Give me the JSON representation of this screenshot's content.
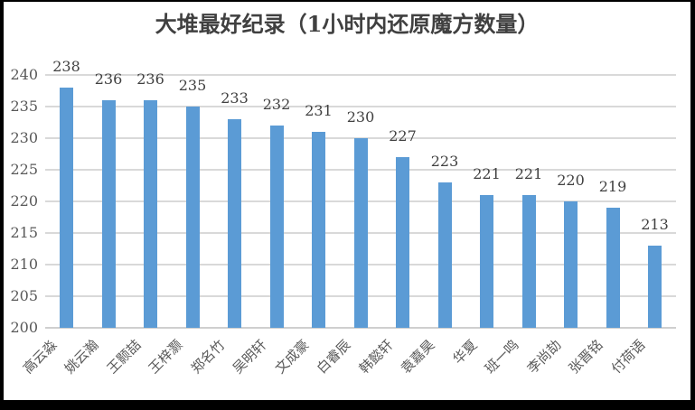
{
  "chart_data": {
    "type": "bar",
    "title": "大堆最好纪录（1小时内还原魔方数量）",
    "categories": [
      "高云淼",
      "姚云瀚",
      "王颢喆",
      "王梓灏",
      "郑名竹",
      "吴明轩",
      "文成豪",
      "白睿辰",
      "韩懿轩",
      "袁嘉昊",
      "华夏",
      "班一鸣",
      "李尚劼",
      "张晋铭",
      "付荷语"
    ],
    "values": [
      238,
      236,
      236,
      235,
      233,
      232,
      231,
      230,
      227,
      223,
      221,
      221,
      220,
      219,
      213
    ],
    "data_labels": [
      238,
      236,
      236,
      235,
      233,
      232,
      231,
      230,
      227,
      223,
      221,
      221,
      220,
      219,
      213
    ],
    "xlabel": "",
    "ylabel": "",
    "ylim": [
      200,
      240
    ],
    "ytick_step": 5,
    "yticks": [
      240,
      235,
      230,
      225,
      220,
      215,
      210,
      205,
      200
    ],
    "grid": true,
    "legend": false,
    "bar_color": "#5b9bd5",
    "gridline_color": "#d9d9d9",
    "title_color": "#404040",
    "value_label_color": "#404040",
    "axis_text_color": "#595959",
    "frame_border_color": "#000000",
    "background_color": "#ffffff"
  }
}
